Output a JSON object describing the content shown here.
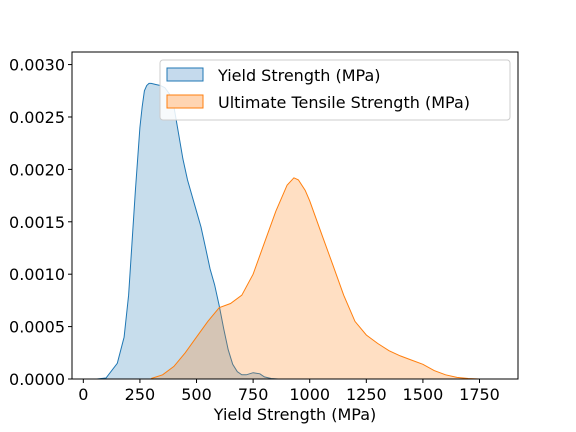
{
  "chart_data": {
    "type": "area",
    "title": "",
    "xlabel": "Yield Strength (MPa)",
    "ylabel": "",
    "xlim": [
      -50,
      1920
    ],
    "ylim": [
      0,
      0.00312
    ],
    "xticks": [
      0,
      250,
      500,
      750,
      1000,
      1250,
      1500,
      1750
    ],
    "yticks": [
      0,
      0.0005,
      0.001,
      0.0015,
      0.002,
      0.0025,
      0.003
    ],
    "yticklabels": [
      "0.0000",
      "0.0005",
      "0.0010",
      "0.0015",
      "0.0020",
      "0.0025",
      "0.0030"
    ],
    "grid": false,
    "legend_position": "top-right",
    "series": [
      {
        "name": "Yield Strength (MPa)",
        "color": "#1f77b4",
        "fill": "#c5daed",
        "x": [
          60,
          100,
          150,
          180,
          200,
          215,
          230,
          250,
          260,
          270,
          280,
          290,
          300,
          320,
          340,
          360,
          380,
          400,
          420,
          440,
          460,
          480,
          500,
          520,
          540,
          560,
          580,
          600,
          620,
          640,
          660,
          680,
          700,
          720,
          750,
          780,
          800,
          830,
          860
        ],
        "y": [
          0,
          1e-05,
          0.00015,
          0.0004,
          0.0008,
          0.0013,
          0.0018,
          0.0024,
          0.0026,
          0.00275,
          0.0028,
          0.00282,
          0.00282,
          0.00281,
          0.0028,
          0.00278,
          0.00272,
          0.0026,
          0.00235,
          0.0021,
          0.0019,
          0.00175,
          0.0016,
          0.00145,
          0.00125,
          0.00105,
          0.0009,
          0.0007,
          0.00048,
          0.00028,
          0.00014,
          7e-05,
          4e-05,
          4e-05,
          6e-05,
          5e-05,
          2e-05,
          5e-06,
          0
        ]
      },
      {
        "name": "Ultimate Tensile Strength (MPa)",
        "color": "#ff7f0e",
        "fill": "#ffd5b2",
        "x": [
          300,
          350,
          400,
          450,
          500,
          550,
          600,
          650,
          700,
          750,
          800,
          850,
          900,
          930,
          950,
          980,
          1000,
          1050,
          1100,
          1150,
          1200,
          1250,
          1300,
          1350,
          1400,
          1450,
          1500,
          1550,
          1600,
          1650,
          1700,
          1750
        ],
        "y": [
          5e-06,
          4e-05,
          0.00012,
          0.00025,
          0.0004,
          0.00055,
          0.00068,
          0.00072,
          0.0008,
          0.001,
          0.0013,
          0.0016,
          0.00185,
          0.00192,
          0.0019,
          0.0018,
          0.0017,
          0.0014,
          0.0011,
          0.0008,
          0.00055,
          0.00042,
          0.00034,
          0.00027,
          0.00022,
          0.00018,
          0.00014,
          8e-05,
          4e-05,
          1.5e-05,
          5e-06,
          0
        ]
      }
    ]
  }
}
